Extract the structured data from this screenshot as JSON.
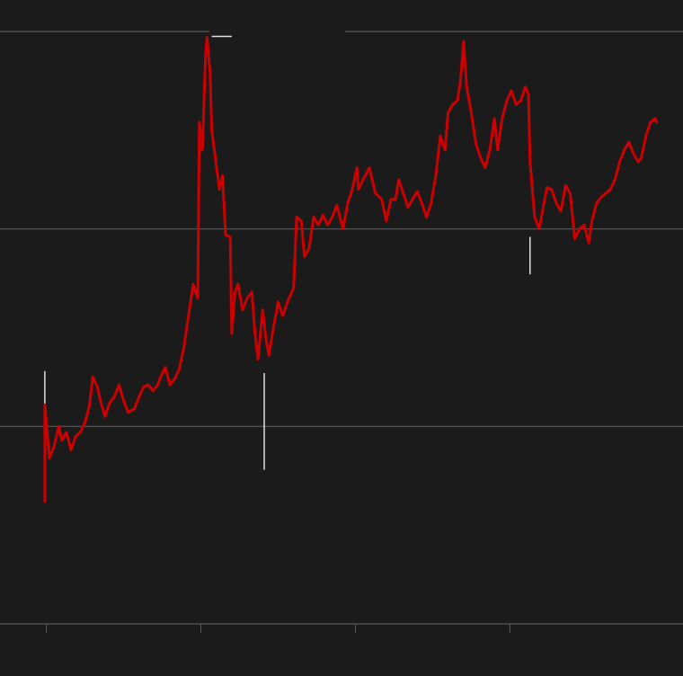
{
  "chart_data": {
    "type": "line",
    "title": "",
    "xlabel": "",
    "ylabel": "",
    "xlim": [
      -0.3,
      4.12
    ],
    "ylim": [
      0,
      3
    ],
    "x_ticks": [
      0,
      1,
      2,
      3
    ],
    "y_gridlines": [
      0,
      1,
      2,
      3
    ],
    "grid": true,
    "colors": {
      "background": "#1b1b1b",
      "line": "#cc0000",
      "grid": "#5a5a5a",
      "annotation": "#e0e0e0"
    },
    "series": [
      {
        "points": [
          [
            -0.01,
            0.62
          ],
          [
            -0.01,
            1.11
          ],
          [
            0.02,
            0.84
          ],
          [
            0.05,
            0.9
          ],
          [
            0.08,
            1.0
          ],
          [
            0.1,
            0.93
          ],
          [
            0.13,
            0.97
          ],
          [
            0.16,
            0.88
          ],
          [
            0.19,
            0.95
          ],
          [
            0.22,
            0.97
          ],
          [
            0.25,
            1.02
          ],
          [
            0.28,
            1.11
          ],
          [
            0.3,
            1.25
          ],
          [
            0.33,
            1.2
          ],
          [
            0.35,
            1.13
          ],
          [
            0.38,
            1.05
          ],
          [
            0.41,
            1.12
          ],
          [
            0.44,
            1.15
          ],
          [
            0.47,
            1.21
          ],
          [
            0.5,
            1.13
          ],
          [
            0.53,
            1.07
          ],
          [
            0.57,
            1.09
          ],
          [
            0.6,
            1.15
          ],
          [
            0.63,
            1.2
          ],
          [
            0.66,
            1.21
          ],
          [
            0.69,
            1.18
          ],
          [
            0.72,
            1.21
          ],
          [
            0.74,
            1.25
          ],
          [
            0.77,
            1.3
          ],
          [
            0.8,
            1.21
          ],
          [
            0.83,
            1.24
          ],
          [
            0.86,
            1.29
          ],
          [
            0.89,
            1.4
          ],
          [
            0.92,
            1.56
          ],
          [
            0.95,
            1.72
          ],
          [
            0.98,
            1.65
          ],
          [
            0.99,
            2.54
          ],
          [
            1.01,
            2.4
          ],
          [
            1.03,
            2.88
          ],
          [
            1.04,
            2.97
          ],
          [
            1.06,
            2.79
          ],
          [
            1.07,
            2.5
          ],
          [
            1.09,
            2.38
          ],
          [
            1.12,
            2.2
          ],
          [
            1.14,
            2.27
          ],
          [
            1.16,
            1.97
          ],
          [
            1.19,
            1.96
          ],
          [
            1.2,
            1.47
          ],
          [
            1.22,
            1.68
          ],
          [
            1.24,
            1.72
          ],
          [
            1.27,
            1.59
          ],
          [
            1.3,
            1.65
          ],
          [
            1.33,
            1.68
          ],
          [
            1.35,
            1.47
          ],
          [
            1.37,
            1.34
          ],
          [
            1.4,
            1.59
          ],
          [
            1.42,
            1.45
          ],
          [
            1.44,
            1.36
          ],
          [
            1.47,
            1.5
          ],
          [
            1.5,
            1.63
          ],
          [
            1.53,
            1.56
          ],
          [
            1.56,
            1.63
          ],
          [
            1.6,
            1.7
          ],
          [
            1.62,
            2.06
          ],
          [
            1.65,
            2.04
          ],
          [
            1.67,
            1.86
          ],
          [
            1.7,
            1.9
          ],
          [
            1.73,
            2.06
          ],
          [
            1.76,
            2.02
          ],
          [
            1.79,
            2.07
          ],
          [
            1.82,
            2.02
          ],
          [
            1.85,
            2.06
          ],
          [
            1.88,
            2.12
          ],
          [
            1.92,
            2.0
          ],
          [
            1.95,
            2.13
          ],
          [
            1.98,
            2.2
          ],
          [
            2.01,
            2.31
          ],
          [
            2.02,
            2.2
          ],
          [
            2.05,
            2.25
          ],
          [
            2.09,
            2.31
          ],
          [
            2.13,
            2.18
          ],
          [
            2.17,
            2.15
          ],
          [
            2.2,
            2.04
          ],
          [
            2.23,
            2.15
          ],
          [
            2.26,
            2.15
          ],
          [
            2.28,
            2.25
          ],
          [
            2.31,
            2.18
          ],
          [
            2.34,
            2.11
          ],
          [
            2.37,
            2.15
          ],
          [
            2.4,
            2.19
          ],
          [
            2.43,
            2.13
          ],
          [
            2.46,
            2.06
          ],
          [
            2.49,
            2.13
          ],
          [
            2.52,
            2.27
          ],
          [
            2.55,
            2.47
          ],
          [
            2.58,
            2.4
          ],
          [
            2.6,
            2.59
          ],
          [
            2.63,
            2.63
          ],
          [
            2.66,
            2.65
          ],
          [
            2.68,
            2.75
          ],
          [
            2.7,
            2.95
          ],
          [
            2.72,
            2.72
          ],
          [
            2.75,
            2.59
          ],
          [
            2.78,
            2.43
          ],
          [
            2.81,
            2.36
          ],
          [
            2.84,
            2.31
          ],
          [
            2.87,
            2.4
          ],
          [
            2.9,
            2.56
          ],
          [
            2.92,
            2.4
          ],
          [
            2.95,
            2.56
          ],
          [
            2.98,
            2.65
          ],
          [
            3.01,
            2.7
          ],
          [
            3.04,
            2.63
          ],
          [
            3.07,
            2.65
          ],
          [
            3.1,
            2.72
          ],
          [
            3.12,
            2.68
          ],
          [
            3.13,
            2.34
          ],
          [
            3.16,
            2.06
          ],
          [
            3.19,
            2.0
          ],
          [
            3.22,
            2.13
          ],
          [
            3.24,
            2.21
          ],
          [
            3.27,
            2.2
          ],
          [
            3.3,
            2.13
          ],
          [
            3.33,
            2.09
          ],
          [
            3.36,
            2.22
          ],
          [
            3.39,
            2.18
          ],
          [
            3.42,
            1.95
          ],
          [
            3.45,
            2.0
          ],
          [
            3.48,
            2.02
          ],
          [
            3.51,
            1.93
          ],
          [
            3.53,
            2.04
          ],
          [
            3.56,
            2.13
          ],
          [
            3.59,
            2.16
          ],
          [
            3.62,
            2.18
          ],
          [
            3.65,
            2.2
          ],
          [
            3.68,
            2.25
          ],
          [
            3.71,
            2.34
          ],
          [
            3.74,
            2.4
          ],
          [
            3.77,
            2.44
          ],
          [
            3.8,
            2.38
          ],
          [
            3.83,
            2.34
          ],
          [
            3.85,
            2.36
          ],
          [
            3.88,
            2.47
          ],
          [
            3.91,
            2.54
          ],
          [
            3.94,
            2.56
          ],
          [
            3.95,
            2.54
          ]
        ]
      }
    ],
    "annotations": [
      {
        "kind": "vertical",
        "x": -0.01,
        "y1": 1.07,
        "y2": 1.28
      },
      {
        "kind": "vertical",
        "x": 1.41,
        "y1": 0.78,
        "y2": 1.27
      },
      {
        "kind": "vertical",
        "x": 3.13,
        "y1": 1.77,
        "y2": 1.96
      },
      {
        "kind": "horizontal",
        "y": 2.975,
        "x1": 1.07,
        "x2": 1.2
      }
    ]
  }
}
